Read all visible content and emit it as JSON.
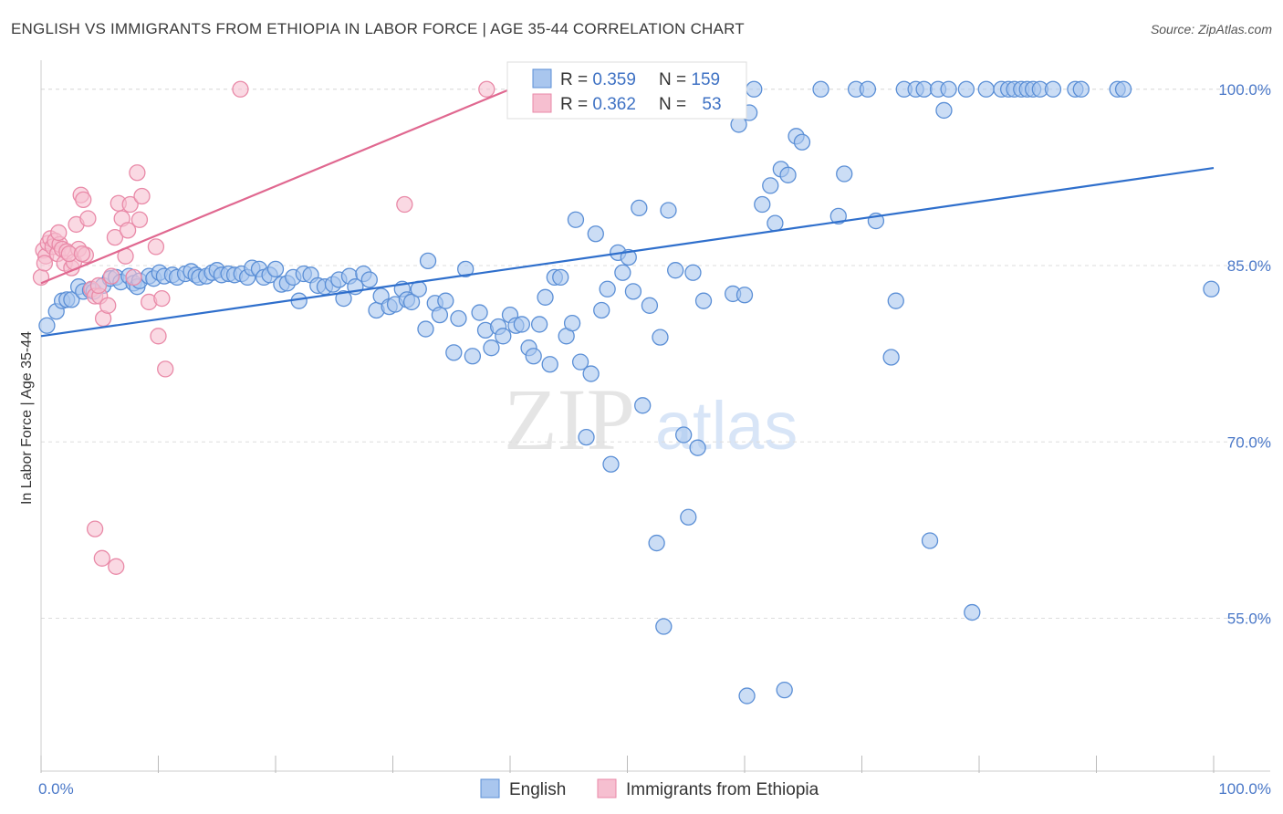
{
  "title": "ENGLISH VS IMMIGRANTS FROM ETHIOPIA IN LABOR FORCE | AGE 35-44 CORRELATION CHART",
  "source": "Source: ZipAtlas.com",
  "watermark": {
    "zip": "ZIP",
    "atlas": "atlas"
  },
  "colors": {
    "english_fill": "#a9c6ee",
    "english_stroke": "#5b8fd6",
    "english_line": "#2f6fcc",
    "ethiopia_fill": "#f6bfd0",
    "ethiopia_stroke": "#e98aa8",
    "ethiopia_line": "#e06890",
    "grid": "#dddddd",
    "axis_label": "#4a78c8"
  },
  "legend": {
    "rows": [
      {
        "r_label": "R = ",
        "r_value": "0.359",
        "n_label": "N = ",
        "n_value": "159",
        "series": "english"
      },
      {
        "r_label": "R = ",
        "r_value": "0.362",
        "n_label": "N = ",
        "n_value": "53",
        "series": "ethiopia"
      }
    ]
  },
  "bottom_legend": [
    {
      "label": "English",
      "series": "english"
    },
    {
      "label": "Immigrants from Ethiopia",
      "series": "ethiopia"
    }
  ],
  "chart_data": {
    "type": "scatter",
    "title": "ENGLISH VS IMMIGRANTS FROM ETHIOPIA IN LABOR FORCE | AGE 35-44 CORRELATION CHART",
    "xlabel": "",
    "ylabel": "In Labor Force | Age 35-44",
    "xlim": [
      0,
      100
    ],
    "ylim": [
      42,
      102
    ],
    "x_tick_labels": [
      "0.0%",
      "100.0%"
    ],
    "y_ticks": [
      55,
      70,
      85,
      100
    ],
    "y_tick_labels": [
      "55.0%",
      "70.0%",
      "85.0%",
      "100.0%"
    ],
    "grid": true,
    "legend_placement": "top-center",
    "series": [
      {
        "name": "English",
        "r": 0.359,
        "n": 159,
        "trend": {
          "x": [
            0,
            100
          ],
          "y": [
            79.0,
            93.3
          ]
        },
        "points": [
          [
            0.5,
            79.9
          ],
          [
            1.3,
            81.1
          ],
          [
            1.8,
            82.0
          ],
          [
            2.2,
            82.1
          ],
          [
            2.6,
            82.1
          ],
          [
            3.2,
            83.2
          ],
          [
            3.6,
            82.8
          ],
          [
            4.2,
            82.9
          ],
          [
            4.5,
            82.8
          ],
          [
            5.3,
            83.3
          ],
          [
            5.9,
            83.9
          ],
          [
            6.4,
            84.0
          ],
          [
            6.8,
            83.6
          ],
          [
            7.5,
            84.1
          ],
          [
            7.9,
            83.5
          ],
          [
            8.2,
            83.2
          ],
          [
            8.4,
            83.7
          ],
          [
            9.2,
            84.1
          ],
          [
            9.6,
            83.9
          ],
          [
            10.1,
            84.4
          ],
          [
            10.5,
            84.1
          ],
          [
            11.2,
            84.2
          ],
          [
            11.6,
            84.0
          ],
          [
            12.3,
            84.3
          ],
          [
            12.8,
            84.5
          ],
          [
            13.2,
            84.2
          ],
          [
            13.5,
            84.0
          ],
          [
            14.1,
            84.1
          ],
          [
            14.6,
            84.4
          ],
          [
            15.0,
            84.6
          ],
          [
            15.4,
            84.2
          ],
          [
            16.0,
            84.3
          ],
          [
            16.5,
            84.2
          ],
          [
            17.1,
            84.3
          ],
          [
            17.6,
            84.0
          ],
          [
            18.0,
            84.8
          ],
          [
            18.6,
            84.7
          ],
          [
            19.0,
            84.0
          ],
          [
            19.5,
            84.2
          ],
          [
            20.0,
            84.7
          ],
          [
            20.5,
            83.4
          ],
          [
            21.0,
            83.5
          ],
          [
            21.5,
            84.0
          ],
          [
            22.0,
            82.0
          ],
          [
            22.4,
            84.3
          ],
          [
            23.0,
            84.2
          ],
          [
            23.6,
            83.3
          ],
          [
            24.2,
            83.2
          ],
          [
            24.9,
            83.4
          ],
          [
            25.4,
            83.8
          ],
          [
            25.8,
            82.2
          ],
          [
            26.3,
            84.1
          ],
          [
            26.8,
            83.2
          ],
          [
            27.5,
            84.3
          ],
          [
            28.0,
            83.8
          ],
          [
            28.6,
            81.2
          ],
          [
            29.0,
            82.4
          ],
          [
            29.7,
            81.5
          ],
          [
            30.2,
            81.7
          ],
          [
            30.8,
            83.0
          ],
          [
            31.2,
            82.1
          ],
          [
            31.6,
            81.9
          ],
          [
            32.2,
            83.0
          ],
          [
            32.8,
            79.6
          ],
          [
            33.0,
            85.4
          ],
          [
            33.6,
            81.8
          ],
          [
            34.0,
            80.8
          ],
          [
            34.5,
            82.0
          ],
          [
            35.2,
            77.6
          ],
          [
            35.6,
            80.5
          ],
          [
            36.2,
            84.7
          ],
          [
            36.8,
            77.3
          ],
          [
            37.4,
            81.0
          ],
          [
            37.9,
            79.5
          ],
          [
            38.4,
            78.0
          ],
          [
            39.0,
            79.8
          ],
          [
            39.4,
            79.0
          ],
          [
            40.0,
            80.8
          ],
          [
            40.5,
            79.9
          ],
          [
            41.0,
            80.0
          ],
          [
            41.6,
            78.0
          ],
          [
            42.0,
            77.3
          ],
          [
            42.5,
            80.0
          ],
          [
            43.0,
            82.3
          ],
          [
            43.4,
            76.6
          ],
          [
            43.8,
            84.0
          ],
          [
            44.3,
            84.0
          ],
          [
            44.8,
            79.0
          ],
          [
            45.3,
            80.1
          ],
          [
            45.6,
            88.9
          ],
          [
            46.0,
            76.8
          ],
          [
            46.5,
            70.4
          ],
          [
            46.9,
            75.8
          ],
          [
            47.3,
            87.7
          ],
          [
            47.8,
            81.2
          ],
          [
            48.3,
            83.0
          ],
          [
            48.6,
            68.1
          ],
          [
            49.2,
            86.1
          ],
          [
            49.6,
            84.4
          ],
          [
            50.1,
            85.7
          ],
          [
            50.5,
            82.8
          ],
          [
            51.0,
            89.9
          ],
          [
            51.3,
            73.1
          ],
          [
            51.9,
            81.6
          ],
          [
            52.5,
            61.4
          ],
          [
            52.8,
            78.9
          ],
          [
            53.1,
            54.3
          ],
          [
            53.5,
            89.7
          ],
          [
            54.1,
            84.6
          ],
          [
            54.8,
            70.6
          ],
          [
            55.2,
            63.6
          ],
          [
            55.6,
            84.4
          ],
          [
            56.0,
            69.5
          ],
          [
            56.5,
            82.0
          ],
          [
            58.0,
            100.0
          ],
          [
            59.0,
            82.6
          ],
          [
            59.5,
            97.0
          ],
          [
            60.0,
            82.5
          ],
          [
            60.4,
            98.0
          ],
          [
            60.8,
            100.0
          ],
          [
            61.5,
            90.2
          ],
          [
            62.2,
            91.8
          ],
          [
            62.6,
            88.6
          ],
          [
            63.1,
            93.2
          ],
          [
            63.7,
            92.7
          ],
          [
            64.4,
            96.0
          ],
          [
            64.9,
            95.5
          ],
          [
            66.5,
            100.0
          ],
          [
            68.0,
            89.2
          ],
          [
            68.5,
            92.8
          ],
          [
            69.5,
            100.0
          ],
          [
            70.5,
            100.0
          ],
          [
            71.2,
            88.8
          ],
          [
            72.5,
            77.2
          ],
          [
            72.9,
            82.0
          ],
          [
            73.6,
            100.0
          ],
          [
            74.6,
            100.0
          ],
          [
            75.3,
            100.0
          ],
          [
            75.8,
            61.6
          ],
          [
            76.5,
            100.0
          ],
          [
            77.0,
            98.2
          ],
          [
            77.4,
            100.0
          ],
          [
            78.9,
            100.0
          ],
          [
            79.4,
            55.5
          ],
          [
            80.6,
            100.0
          ],
          [
            81.9,
            100.0
          ],
          [
            82.5,
            100.0
          ],
          [
            83.0,
            100.0
          ],
          [
            83.6,
            100.0
          ],
          [
            84.1,
            100.0
          ],
          [
            84.6,
            100.0
          ],
          [
            85.2,
            100.0
          ],
          [
            86.3,
            100.0
          ],
          [
            88.2,
            100.0
          ],
          [
            88.7,
            100.0
          ],
          [
            91.8,
            100.0
          ],
          [
            92.3,
            100.0
          ],
          [
            99.8,
            83.0
          ],
          [
            60.2,
            48.4
          ],
          [
            63.4,
            48.9
          ]
        ]
      },
      {
        "name": "Immigrants from Ethiopia",
        "r": 0.362,
        "n": 53,
        "trend": {
          "x": [
            0,
            40
          ],
          "y": [
            83.5,
            100.0
          ]
        },
        "points": [
          [
            0.2,
            86.3
          ],
          [
            0.4,
            85.8
          ],
          [
            0.6,
            86.9
          ],
          [
            0.8,
            87.3
          ],
          [
            1.0,
            86.6
          ],
          [
            1.2,
            87.1
          ],
          [
            1.4,
            86.0
          ],
          [
            1.6,
            86.8
          ],
          [
            1.8,
            86.4
          ],
          [
            2.0,
            85.2
          ],
          [
            2.2,
            86.2
          ],
          [
            2.6,
            84.8
          ],
          [
            2.8,
            85.3
          ],
          [
            3.0,
            88.5
          ],
          [
            3.2,
            86.4
          ],
          [
            3.4,
            91.0
          ],
          [
            3.6,
            90.6
          ],
          [
            3.8,
            85.9
          ],
          [
            4.0,
            89.0
          ],
          [
            4.3,
            83.0
          ],
          [
            4.6,
            82.4
          ],
          [
            5.0,
            82.4
          ],
          [
            5.3,
            80.5
          ],
          [
            5.7,
            81.6
          ],
          [
            6.0,
            84.1
          ],
          [
            6.3,
            87.4
          ],
          [
            6.6,
            90.3
          ],
          [
            6.9,
            89.0
          ],
          [
            7.2,
            85.8
          ],
          [
            7.4,
            88.0
          ],
          [
            7.6,
            90.2
          ],
          [
            7.9,
            84.0
          ],
          [
            8.2,
            92.9
          ],
          [
            8.4,
            88.9
          ],
          [
            8.6,
            90.9
          ],
          [
            9.2,
            81.9
          ],
          [
            9.8,
            86.6
          ],
          [
            10.0,
            79.0
          ],
          [
            10.3,
            82.2
          ],
          [
            10.6,
            76.2
          ],
          [
            4.6,
            62.6
          ],
          [
            5.2,
            60.1
          ],
          [
            6.4,
            59.4
          ],
          [
            17.0,
            100.0
          ],
          [
            31.0,
            90.2
          ],
          [
            38.0,
            100.0
          ],
          [
            41.0,
            100.0
          ],
          [
            0.0,
            84.0
          ],
          [
            0.3,
            85.2
          ],
          [
            1.5,
            87.8
          ],
          [
            2.4,
            86.0
          ],
          [
            3.5,
            86.0
          ],
          [
            4.9,
            83.3
          ]
        ]
      }
    ]
  }
}
